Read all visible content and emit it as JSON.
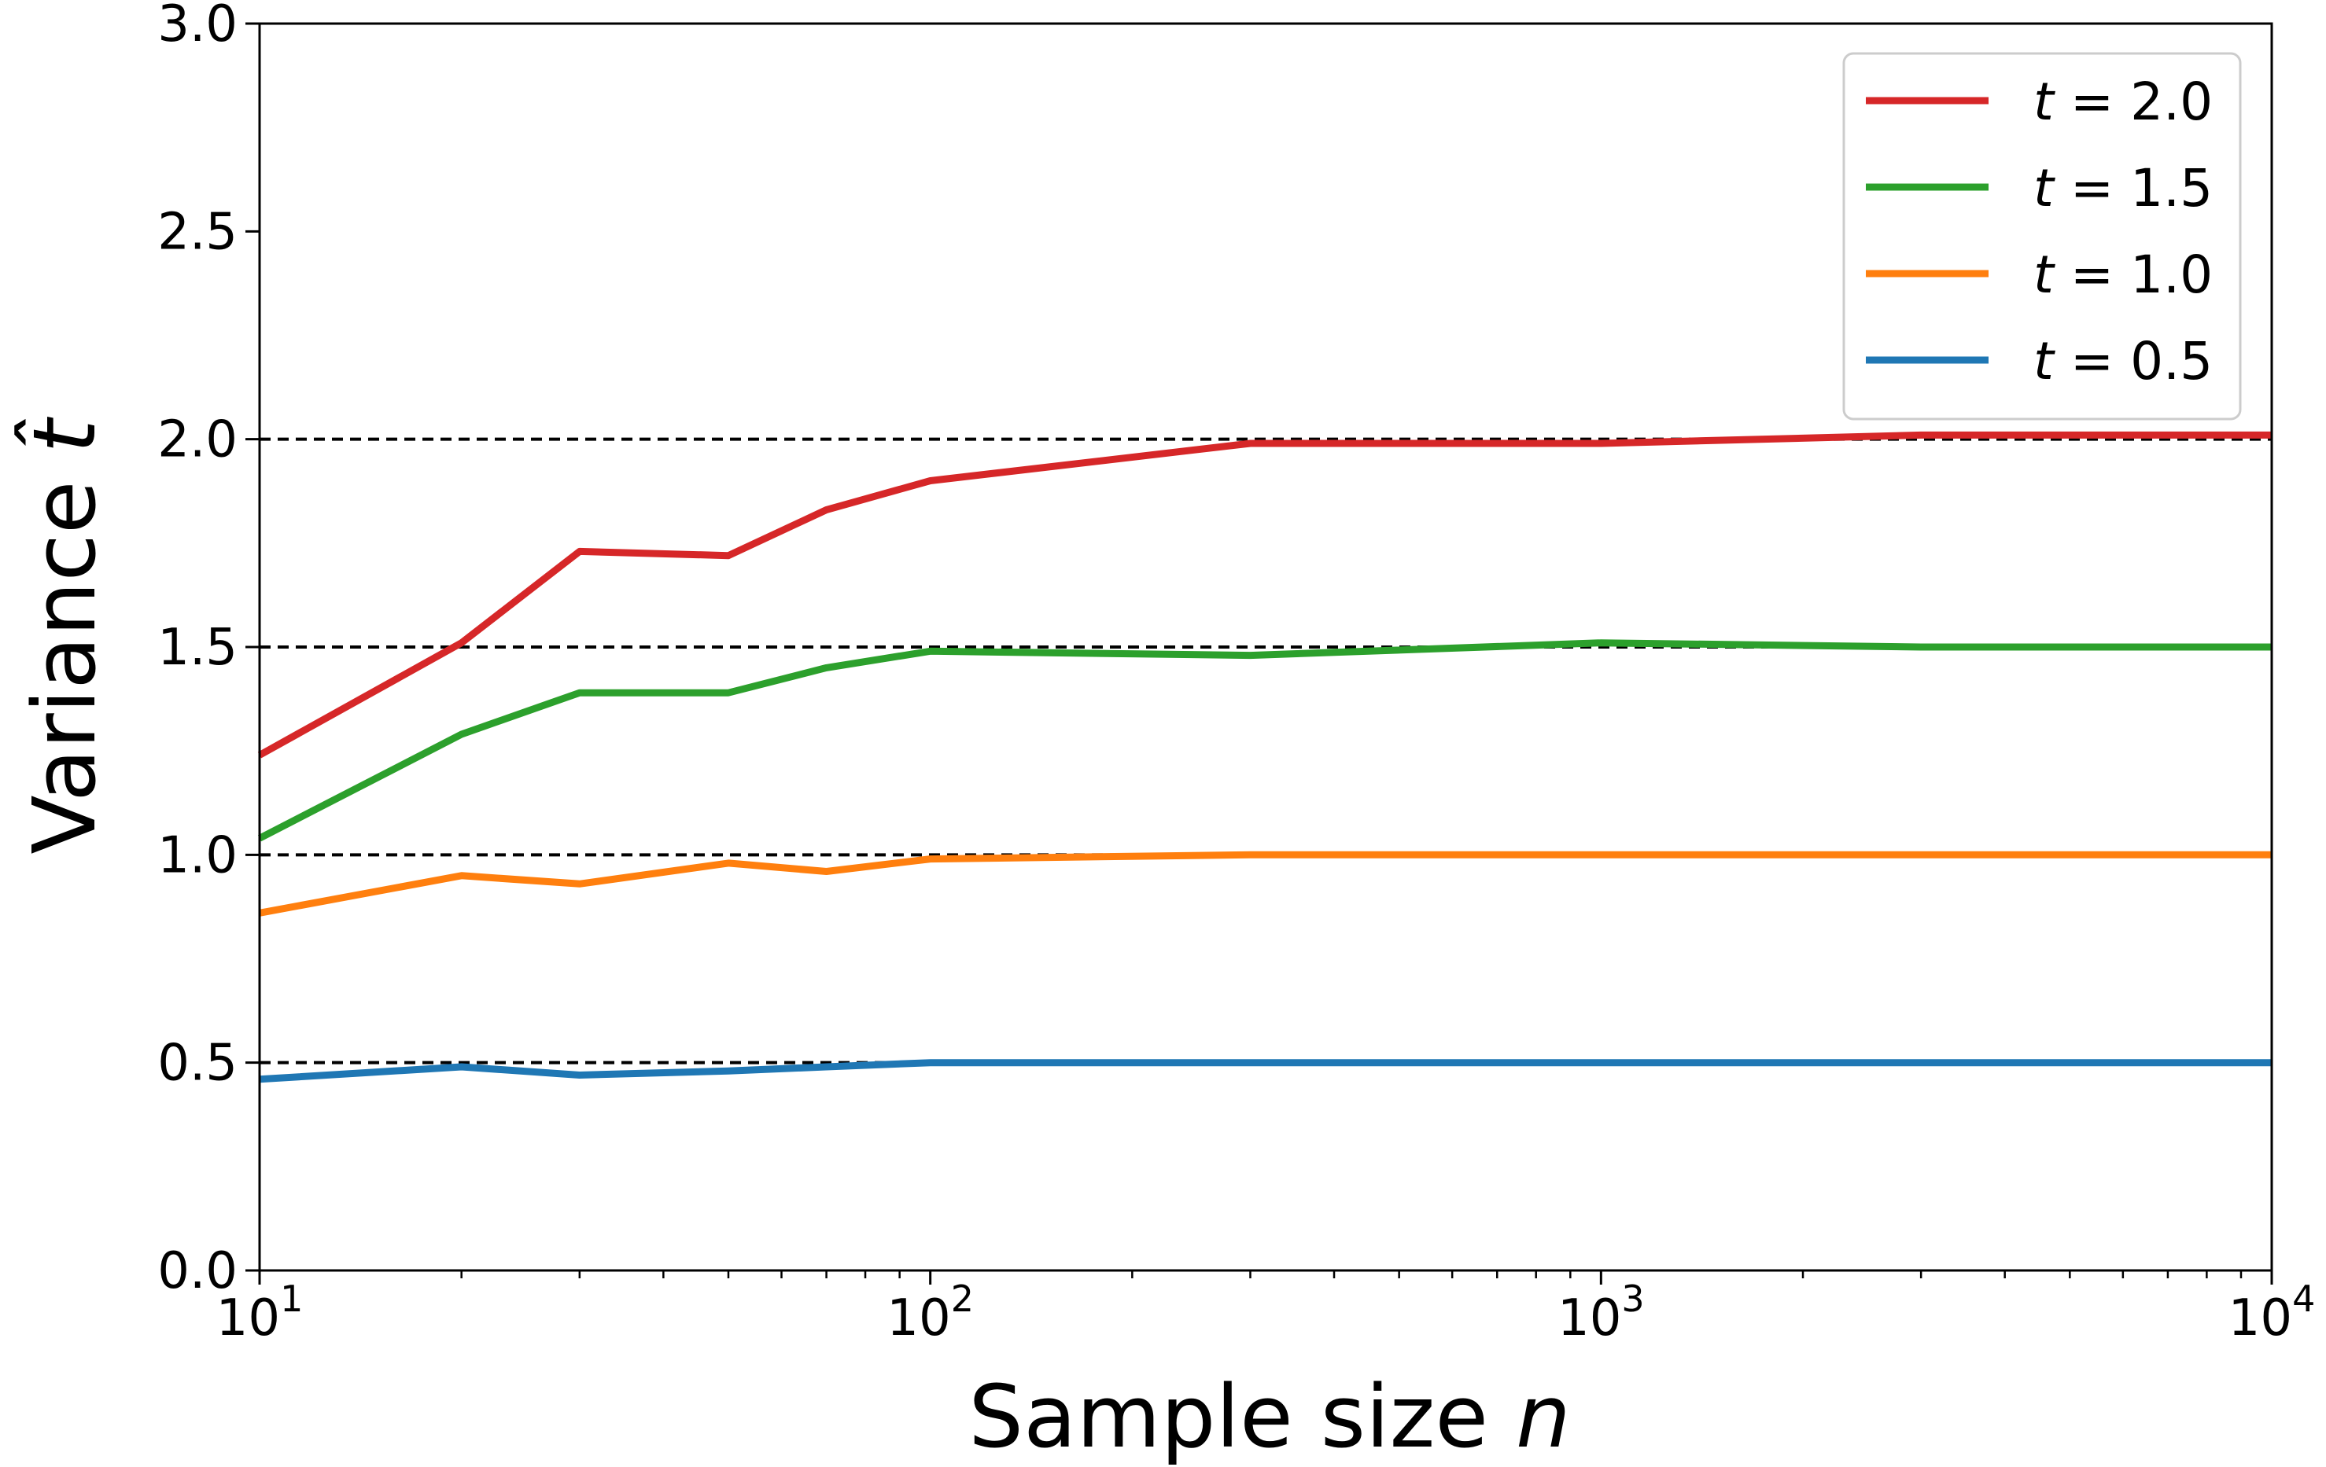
{
  "chart_data": {
    "type": "line",
    "xscale": "log",
    "xlim": [
      10,
      10000
    ],
    "ylim": [
      0.0,
      3.0
    ],
    "xlabel": {
      "text": "Sample size ",
      "var": "n"
    },
    "ylabel": {
      "text": "Variance ",
      "var": "t̂"
    },
    "xticks": [
      {
        "value": 10,
        "base": "10",
        "exp": "1"
      },
      {
        "value": 100,
        "base": "10",
        "exp": "2"
      },
      {
        "value": 1000,
        "base": "10",
        "exp": "3"
      },
      {
        "value": 10000,
        "base": "10",
        "exp": "4"
      }
    ],
    "yticks": [
      {
        "value": 0.0,
        "label": "0.0"
      },
      {
        "value": 0.5,
        "label": "0.5"
      },
      {
        "value": 1.0,
        "label": "1.0"
      },
      {
        "value": 1.5,
        "label": "1.5"
      },
      {
        "value": 2.0,
        "label": "2.0"
      },
      {
        "value": 2.5,
        "label": "2.5"
      },
      {
        "value": 3.0,
        "label": "3.0"
      }
    ],
    "reference_lines": [
      0.5,
      1.0,
      1.5,
      2.0
    ],
    "legend_position": "top-right",
    "x": [
      10,
      20,
      30,
      50,
      70,
      100,
      300,
      1000,
      3000,
      10000
    ],
    "series": [
      {
        "name": "2.0",
        "var": "t",
        "color": "#d62728",
        "values": [
          1.24,
          1.51,
          1.73,
          1.72,
          1.83,
          1.9,
          1.99,
          1.99,
          2.01,
          2.01
        ]
      },
      {
        "name": "1.5",
        "var": "t",
        "color": "#2ca02c",
        "values": [
          1.04,
          1.29,
          1.39,
          1.39,
          1.45,
          1.49,
          1.48,
          1.51,
          1.5,
          1.5
        ]
      },
      {
        "name": "1.0",
        "var": "t",
        "color": "#ff7f0e",
        "values": [
          0.86,
          0.95,
          0.93,
          0.98,
          0.96,
          0.99,
          1.0,
          1.0,
          1.0,
          1.0
        ]
      },
      {
        "name": "0.5",
        "var": "t",
        "color": "#1f77b4",
        "values": [
          0.46,
          0.49,
          0.47,
          0.48,
          0.49,
          0.5,
          0.5,
          0.5,
          0.5,
          0.5
        ]
      }
    ]
  }
}
